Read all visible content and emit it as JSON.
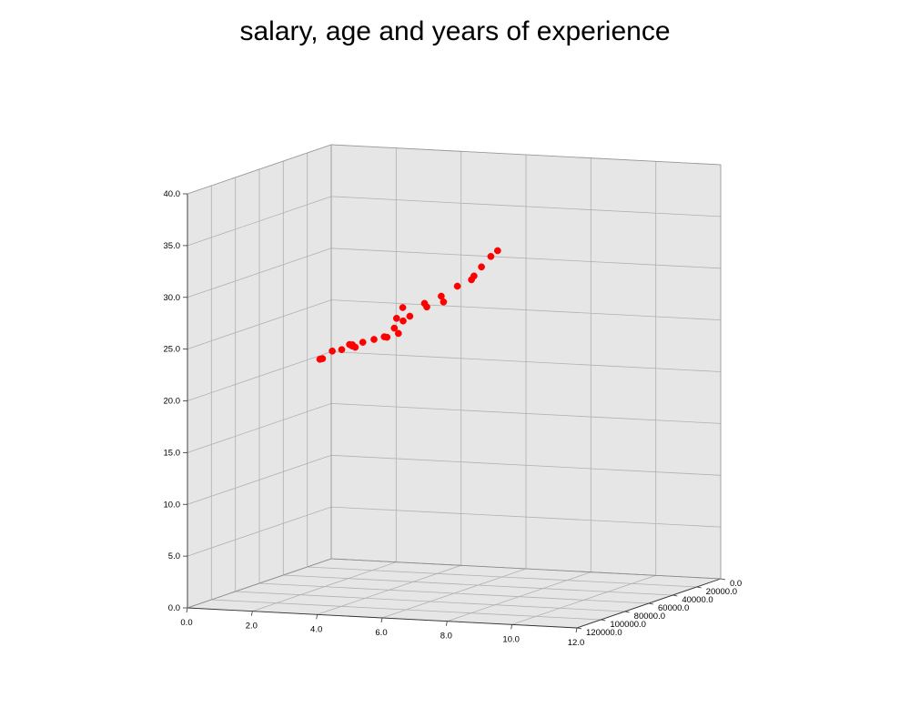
{
  "chart_data": {
    "type": "scatter",
    "projection": "3d",
    "title": "salary, age and years of experience",
    "xlabel": "",
    "ylabel": "",
    "zlabel": "",
    "xlim": [
      0,
      12
    ],
    "ylim": [
      0,
      120000
    ],
    "zlim": [
      0,
      40
    ],
    "x_ticks": [
      "0.0",
      "2.0",
      "4.0",
      "6.0",
      "8.0",
      "10.0",
      "12.0"
    ],
    "y_ticks": [
      "0.0",
      "20000.0",
      "40000.0",
      "60000.0",
      "80000.0",
      "100000.0",
      "120000.0"
    ],
    "z_ticks": [
      "0.0",
      "5.0",
      "10.0",
      "15.0",
      "20.0",
      "25.0",
      "30.0",
      "35.0",
      "40.0"
    ],
    "grid": true,
    "pane_color": "#e6e6e6",
    "marker_color": "#ff0000",
    "points": [
      {
        "years": 1.1,
        "salary": 39300,
        "age": 21.0
      },
      {
        "years": 1.2,
        "salary": 39800,
        "age": 21.1
      },
      {
        "years": 1.6,
        "salary": 42500,
        "age": 22.0
      },
      {
        "years": 1.9,
        "salary": 42700,
        "age": 22.2
      },
      {
        "years": 2.2,
        "salary": 44300,
        "age": 22.8
      },
      {
        "years": 2.3,
        "salary": 44600,
        "age": 22.8
      },
      {
        "years": 2.3,
        "salary": 44800,
        "age": 22.7
      },
      {
        "years": 2.4,
        "salary": 45000,
        "age": 22.6
      },
      {
        "years": 2.7,
        "salary": 46800,
        "age": 23.2
      },
      {
        "years": 3.1,
        "salary": 48300,
        "age": 23.6
      },
      {
        "years": 3.5,
        "salary": 50500,
        "age": 24.0
      },
      {
        "years": 3.6,
        "salary": 51000,
        "age": 24.0
      },
      {
        "years": 3.9,
        "salary": 53000,
        "age": 25.0
      },
      {
        "years": 4.0,
        "salary": 53800,
        "age": 26.0
      },
      {
        "years": 4.1,
        "salary": 55000,
        "age": 24.6
      },
      {
        "years": 4.3,
        "salary": 56500,
        "age": 25.9
      },
      {
        "years": 4.3,
        "salary": 56800,
        "age": 27.2
      },
      {
        "years": 4.6,
        "salary": 59000,
        "age": 26.5
      },
      {
        "years": 5.2,
        "salary": 63000,
        "age": 28.0
      },
      {
        "years": 5.3,
        "salary": 63800,
        "age": 27.7
      },
      {
        "years": 5.9,
        "salary": 68000,
        "age": 29.0
      },
      {
        "years": 6.0,
        "salary": 68800,
        "age": 28.5
      },
      {
        "years": 6.6,
        "salary": 73500,
        "age": 30.3
      },
      {
        "years": 7.2,
        "salary": 78000,
        "age": 31.2
      },
      {
        "years": 7.3,
        "salary": 78600,
        "age": 31.6
      },
      {
        "years": 7.6,
        "salary": 80500,
        "age": 32.6
      },
      {
        "years": 8.0,
        "salary": 83500,
        "age": 33.8
      },
      {
        "years": 8.3,
        "salary": 86000,
        "age": 34.5
      }
    ]
  }
}
